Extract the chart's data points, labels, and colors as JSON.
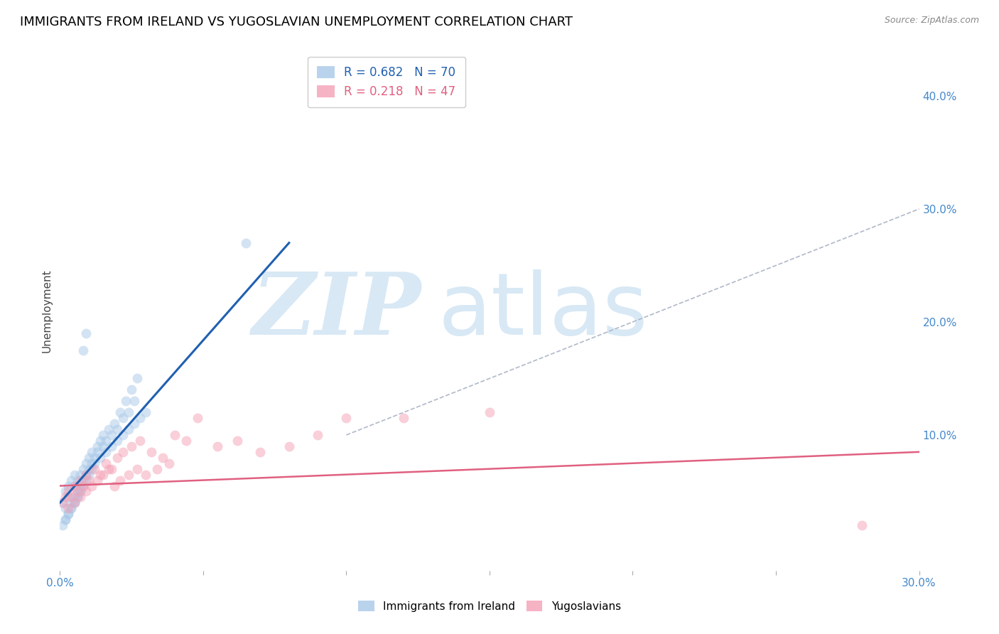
{
  "title": "IMMIGRANTS FROM IRELAND VS YUGOSLAVIAN UNEMPLOYMENT CORRELATION CHART",
  "source_text": "Source: ZipAtlas.com",
  "ylabel": "Unemployment",
  "xlim": [
    0.0,
    0.3
  ],
  "ylim": [
    -0.02,
    0.44
  ],
  "x_ticks": [
    0.0,
    0.05,
    0.1,
    0.15,
    0.2,
    0.25,
    0.3
  ],
  "x_tick_labels": [
    "0.0%",
    "",
    "",
    "",
    "",
    "",
    "30.0%"
  ],
  "y_ticks_right": [
    0.1,
    0.2,
    0.3,
    0.4
  ],
  "y_tick_labels_right": [
    "10.0%",
    "20.0%",
    "30.0%",
    "40.0%"
  ],
  "legend_entries": [
    {
      "label": "Immigrants from Ireland",
      "R": "0.682",
      "N": "70",
      "color": "#a8c8e8"
    },
    {
      "label": "Yugoslavians",
      "R": "0.218",
      "N": "47",
      "color": "#f4a0b5"
    }
  ],
  "watermark_zip": "ZIP",
  "watermark_atlas": "atlas",
  "watermark_color": "#d8e8f5",
  "blue_scatter_x": [
    0.001,
    0.002,
    0.002,
    0.003,
    0.003,
    0.004,
    0.004,
    0.005,
    0.005,
    0.005,
    0.006,
    0.006,
    0.007,
    0.007,
    0.008,
    0.008,
    0.009,
    0.009,
    0.01,
    0.01,
    0.011,
    0.011,
    0.012,
    0.013,
    0.013,
    0.014,
    0.015,
    0.015,
    0.016,
    0.017,
    0.018,
    0.019,
    0.02,
    0.021,
    0.022,
    0.023,
    0.024,
    0.025,
    0.026,
    0.027,
    0.002,
    0.003,
    0.004,
    0.005,
    0.006,
    0.007,
    0.008,
    0.009,
    0.01,
    0.011,
    0.012,
    0.014,
    0.016,
    0.018,
    0.02,
    0.022,
    0.024,
    0.026,
    0.028,
    0.03,
    0.001,
    0.002,
    0.003,
    0.004,
    0.005,
    0.006,
    0.007,
    0.065,
    0.008,
    0.009
  ],
  "blue_scatter_y": [
    0.04,
    0.035,
    0.05,
    0.045,
    0.055,
    0.04,
    0.06,
    0.045,
    0.055,
    0.065,
    0.05,
    0.06,
    0.055,
    0.065,
    0.06,
    0.07,
    0.065,
    0.075,
    0.07,
    0.08,
    0.075,
    0.085,
    0.08,
    0.09,
    0.085,
    0.095,
    0.09,
    0.1,
    0.095,
    0.105,
    0.1,
    0.11,
    0.105,
    0.12,
    0.115,
    0.13,
    0.12,
    0.14,
    0.13,
    0.15,
    0.025,
    0.03,
    0.035,
    0.04,
    0.045,
    0.05,
    0.055,
    0.06,
    0.065,
    0.07,
    0.075,
    0.08,
    0.085,
    0.09,
    0.095,
    0.1,
    0.105,
    0.11,
    0.115,
    0.12,
    0.02,
    0.025,
    0.03,
    0.035,
    0.04,
    0.045,
    0.05,
    0.27,
    0.175,
    0.19
  ],
  "pink_scatter_x": [
    0.001,
    0.002,
    0.003,
    0.004,
    0.005,
    0.006,
    0.007,
    0.008,
    0.009,
    0.01,
    0.012,
    0.014,
    0.016,
    0.018,
    0.02,
    0.022,
    0.025,
    0.028,
    0.032,
    0.036,
    0.04,
    0.044,
    0.048,
    0.055,
    0.062,
    0.07,
    0.08,
    0.09,
    0.1,
    0.12,
    0.003,
    0.005,
    0.007,
    0.009,
    0.011,
    0.013,
    0.015,
    0.017,
    0.019,
    0.021,
    0.024,
    0.027,
    0.03,
    0.034,
    0.038,
    0.15,
    0.28
  ],
  "pink_scatter_y": [
    0.04,
    0.045,
    0.05,
    0.045,
    0.055,
    0.05,
    0.06,
    0.055,
    0.065,
    0.06,
    0.07,
    0.065,
    0.075,
    0.07,
    0.08,
    0.085,
    0.09,
    0.095,
    0.085,
    0.08,
    0.1,
    0.095,
    0.115,
    0.09,
    0.095,
    0.085,
    0.09,
    0.1,
    0.115,
    0.115,
    0.035,
    0.04,
    0.045,
    0.05,
    0.055,
    0.06,
    0.065,
    0.07,
    0.055,
    0.06,
    0.065,
    0.07,
    0.065,
    0.07,
    0.075,
    0.12,
    0.02
  ],
  "blue_line_x": [
    0.0,
    0.08
  ],
  "blue_line_y": [
    0.04,
    0.27
  ],
  "pink_line_x": [
    0.0,
    0.3
  ],
  "pink_line_y": [
    0.055,
    0.085
  ],
  "diag_line_x": [
    0.1,
    0.3
  ],
  "diag_line_y": [
    0.1,
    0.3
  ],
  "title_fontsize": 13,
  "axis_label_fontsize": 11,
  "tick_fontsize": 11,
  "scatter_size": 100,
  "scatter_alpha": 0.5,
  "blue_scatter_color": "#a8c8e8",
  "pink_scatter_color": "#f4a0b5",
  "blue_line_color": "#2060b0",
  "pink_line_color": "#e06080",
  "diag_line_color": "#b0b8c8",
  "grid_color": "#d0d8e8",
  "background_color": "#ffffff",
  "right_axis_color": "#4488cc",
  "bottom_axis_color": "#4488cc"
}
